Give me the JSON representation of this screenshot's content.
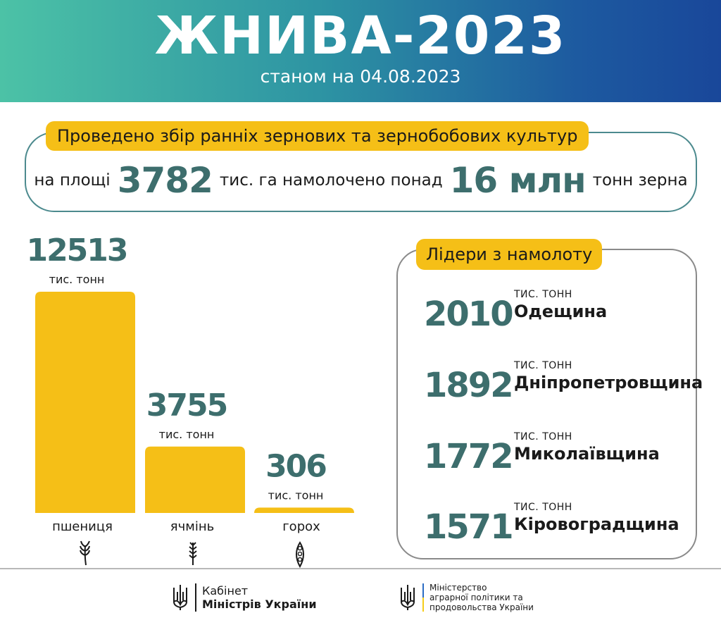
{
  "header": {
    "title": "ЖНИВА-2023",
    "subtitle": "станом на 04.08.2023"
  },
  "summary": {
    "title": "Проведено збір ранніх зернових та зернобобових культур",
    "prefix": "на площі",
    "area_value": "3782",
    "middle": "тис. га намолочено понад",
    "grain_value": "16 млн",
    "suffix": "тонн зерна"
  },
  "chart_data": {
    "type": "bar",
    "categories": [
      "пшениця",
      "ячмінь",
      "горох"
    ],
    "values": [
      12513,
      3755,
      306
    ],
    "value_labels": [
      "12513",
      "3755",
      "306"
    ],
    "unit_label": "тис. тонн",
    "icons": [
      "wheat-icon",
      "barley-icon",
      "pea-pod-icon"
    ],
    "bar_color": "#f5bf17",
    "value_color": "#3d6e6d",
    "ylim": [
      0,
      12513
    ]
  },
  "leaders": {
    "title": "Лідери з намолоту",
    "unit": "ТИС. ТОНН",
    "items": [
      {
        "value": "2010",
        "region": "Одещина"
      },
      {
        "value": "1892",
        "region": "Дніпропетровщина"
      },
      {
        "value": "1772",
        "region": "Миколаївщина"
      },
      {
        "value": "1571",
        "region": "Кіровоградщина"
      }
    ]
  },
  "footer": {
    "cabinet_line1": "Кабінет",
    "cabinet_line2": "Міністрів України",
    "ministry_line1": "Міністерство",
    "ministry_line2": "аграрної політики та",
    "ministry_line3": "продовольства України"
  },
  "colors": {
    "accent_yellow": "#f5bf17",
    "value_teal": "#3d6e6d",
    "header_gradient_start": "#4cc2a6",
    "header_gradient_end": "#19479a",
    "flag_blue": "#2b6cc4",
    "flag_yellow": "#f5cd1a"
  }
}
